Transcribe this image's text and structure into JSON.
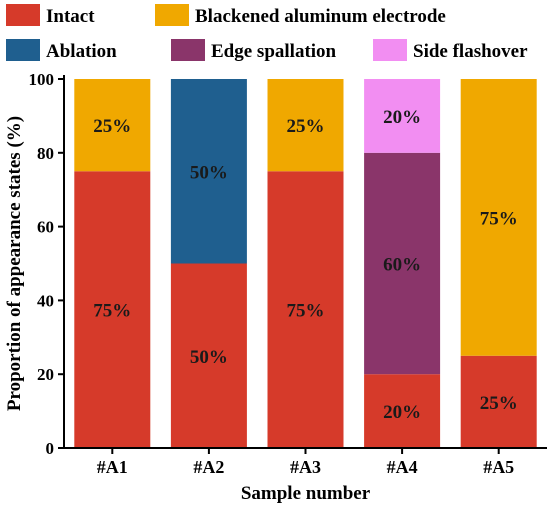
{
  "chart_data": {
    "type": "bar",
    "stacked": true,
    "title": "",
    "xlabel": "Sample number",
    "ylabel": "Proportion of appearance states (%)",
    "categories": [
      "#A1",
      "#A2",
      "#A3",
      "#A4",
      "#A5"
    ],
    "ylim": [
      0,
      100
    ],
    "yticks": [
      0,
      20,
      40,
      60,
      80,
      100
    ],
    "grid": false,
    "legend_position": "top",
    "series": [
      {
        "name": "Intact",
        "color": "#d63a2a",
        "values": [
          75,
          50,
          75,
          20,
          25
        ]
      },
      {
        "name": "Blackened aluminum electrode",
        "color": "#f0a800",
        "values": [
          25,
          0,
          25,
          0,
          75
        ]
      },
      {
        "name": "Ablation",
        "color": "#1f5f8f",
        "values": [
          0,
          50,
          0,
          0,
          0
        ]
      },
      {
        "name": "Edge spallation",
        "color": "#8a356a",
        "values": [
          0,
          0,
          0,
          60,
          0
        ]
      },
      {
        "name": "Side flashover",
        "color": "#f28ef2",
        "values": [
          0,
          0,
          0,
          20,
          0
        ]
      }
    ],
    "data_labels": [
      {
        "category": "#A1",
        "series": "Intact",
        "text": "75%"
      },
      {
        "category": "#A1",
        "series": "Blackened aluminum electrode",
        "text": "25%"
      },
      {
        "category": "#A2",
        "series": "Intact",
        "text": "50%"
      },
      {
        "category": "#A2",
        "series": "Ablation",
        "text": "50%"
      },
      {
        "category": "#A3",
        "series": "Intact",
        "text": "75%"
      },
      {
        "category": "#A3",
        "series": "Blackened aluminum electrode",
        "text": "25%"
      },
      {
        "category": "#A4",
        "series": "Intact",
        "text": "20%"
      },
      {
        "category": "#A4",
        "series": "Edge spallation",
        "text": "60%"
      },
      {
        "category": "#A4",
        "series": "Side flashover",
        "text": "20%"
      },
      {
        "category": "#A5",
        "series": "Intact",
        "text": "25%"
      },
      {
        "category": "#A5",
        "series": "Blackened aluminum electrode",
        "text": "75%"
      }
    ]
  }
}
